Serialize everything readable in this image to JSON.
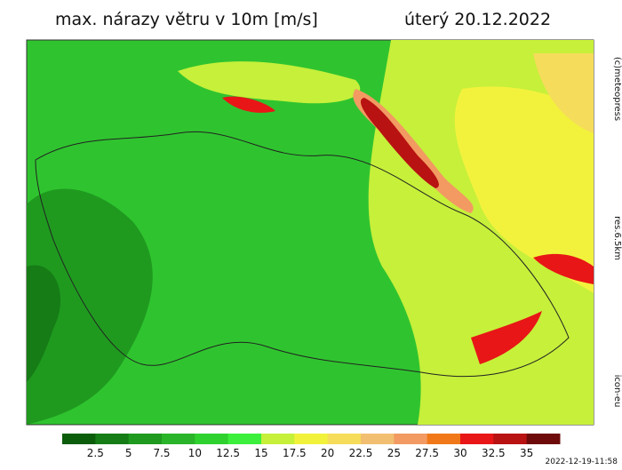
{
  "header": {
    "title": "max. nárazy větru v 10m [m/s]",
    "date": "úterý 20.12.2022"
  },
  "side_labels": {
    "copyright": "(c)meteopress",
    "resolution": "res.6.5km",
    "model": "icon-eu"
  },
  "timestamp": "2022-12-19-11:58",
  "colorbar": {
    "colors": [
      "#0b5c0b",
      "#167c16",
      "#1f9a1f",
      "#2ab42a",
      "#2fd12f",
      "#3cef3c",
      "#c6f03a",
      "#f2f23c",
      "#f5dc5a",
      "#f2bf72",
      "#f29a62",
      "#f07818",
      "#e81616",
      "#b81212",
      "#6e0a0a"
    ],
    "labels": [
      "2.5",
      "5",
      "7.5",
      "10",
      "12.5",
      "15",
      "17.5",
      "20",
      "22.5",
      "25",
      "27.5",
      "30",
      "32.5",
      "35"
    ]
  }
}
